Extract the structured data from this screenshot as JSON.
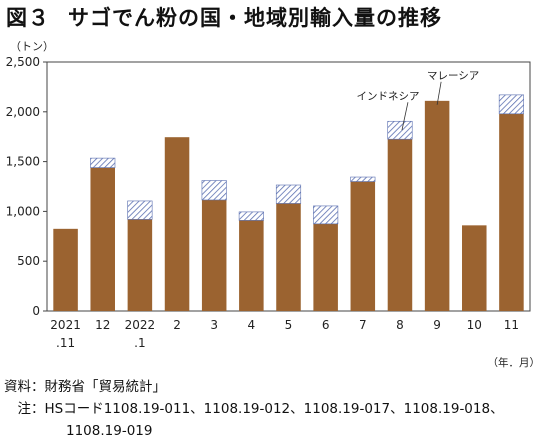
{
  "header": {
    "figure_number": "図３",
    "title": "サゴでん粉の国・地域別輸入量の推移"
  },
  "chart_data": {
    "type": "bar",
    "stacked": true,
    "title": "サゴでん粉の国・地域別輸入量の推移",
    "ylabel": "（トン）",
    "xlabel": "（年．月）",
    "ylim": [
      0,
      2500
    ],
    "yticks": [
      0,
      500,
      1000,
      1500,
      2000,
      2500
    ],
    "ytick_labels": [
      "0",
      "500",
      "1,000",
      "1,500",
      "2,000",
      "2,500"
    ],
    "grid": false,
    "categories": [
      [
        "2021",
        ".11"
      ],
      [
        "12"
      ],
      [
        "2022",
        ".1"
      ],
      [
        "2"
      ],
      [
        "3"
      ],
      [
        "4"
      ],
      [
        "5"
      ],
      [
        "6"
      ],
      [
        "7"
      ],
      [
        "8"
      ],
      [
        "9"
      ],
      [
        "10"
      ],
      [
        "11"
      ]
    ],
    "series": [
      {
        "name": "マレーシア",
        "color": "#9b6330",
        "pattern": "solid",
        "values": [
          825,
          1440,
          920,
          1745,
          1115,
          910,
          1080,
          875,
          1300,
          1725,
          2110,
          860,
          1980
        ]
      },
      {
        "name": "インドネシア",
        "color": "#5a6fb0",
        "pattern": "hatch",
        "values": [
          0,
          95,
          185,
          0,
          195,
          85,
          185,
          180,
          45,
          180,
          0,
          0,
          190
        ]
      }
    ],
    "annotations": [
      {
        "text": "マレーシア",
        "category_index": 10,
        "series": "マレーシア"
      },
      {
        "text": "インドネシア",
        "category_index": 9,
        "series": "インドネシア"
      }
    ]
  },
  "notes": {
    "source_label": "資料：",
    "source_text": "財務省「貿易統計」",
    "note_label": "　注：",
    "note_text": "HSコード1108.19-011、1108.19-012、1108.19-017、1108.19-018、",
    "note_text_2": "1108.19-019"
  }
}
